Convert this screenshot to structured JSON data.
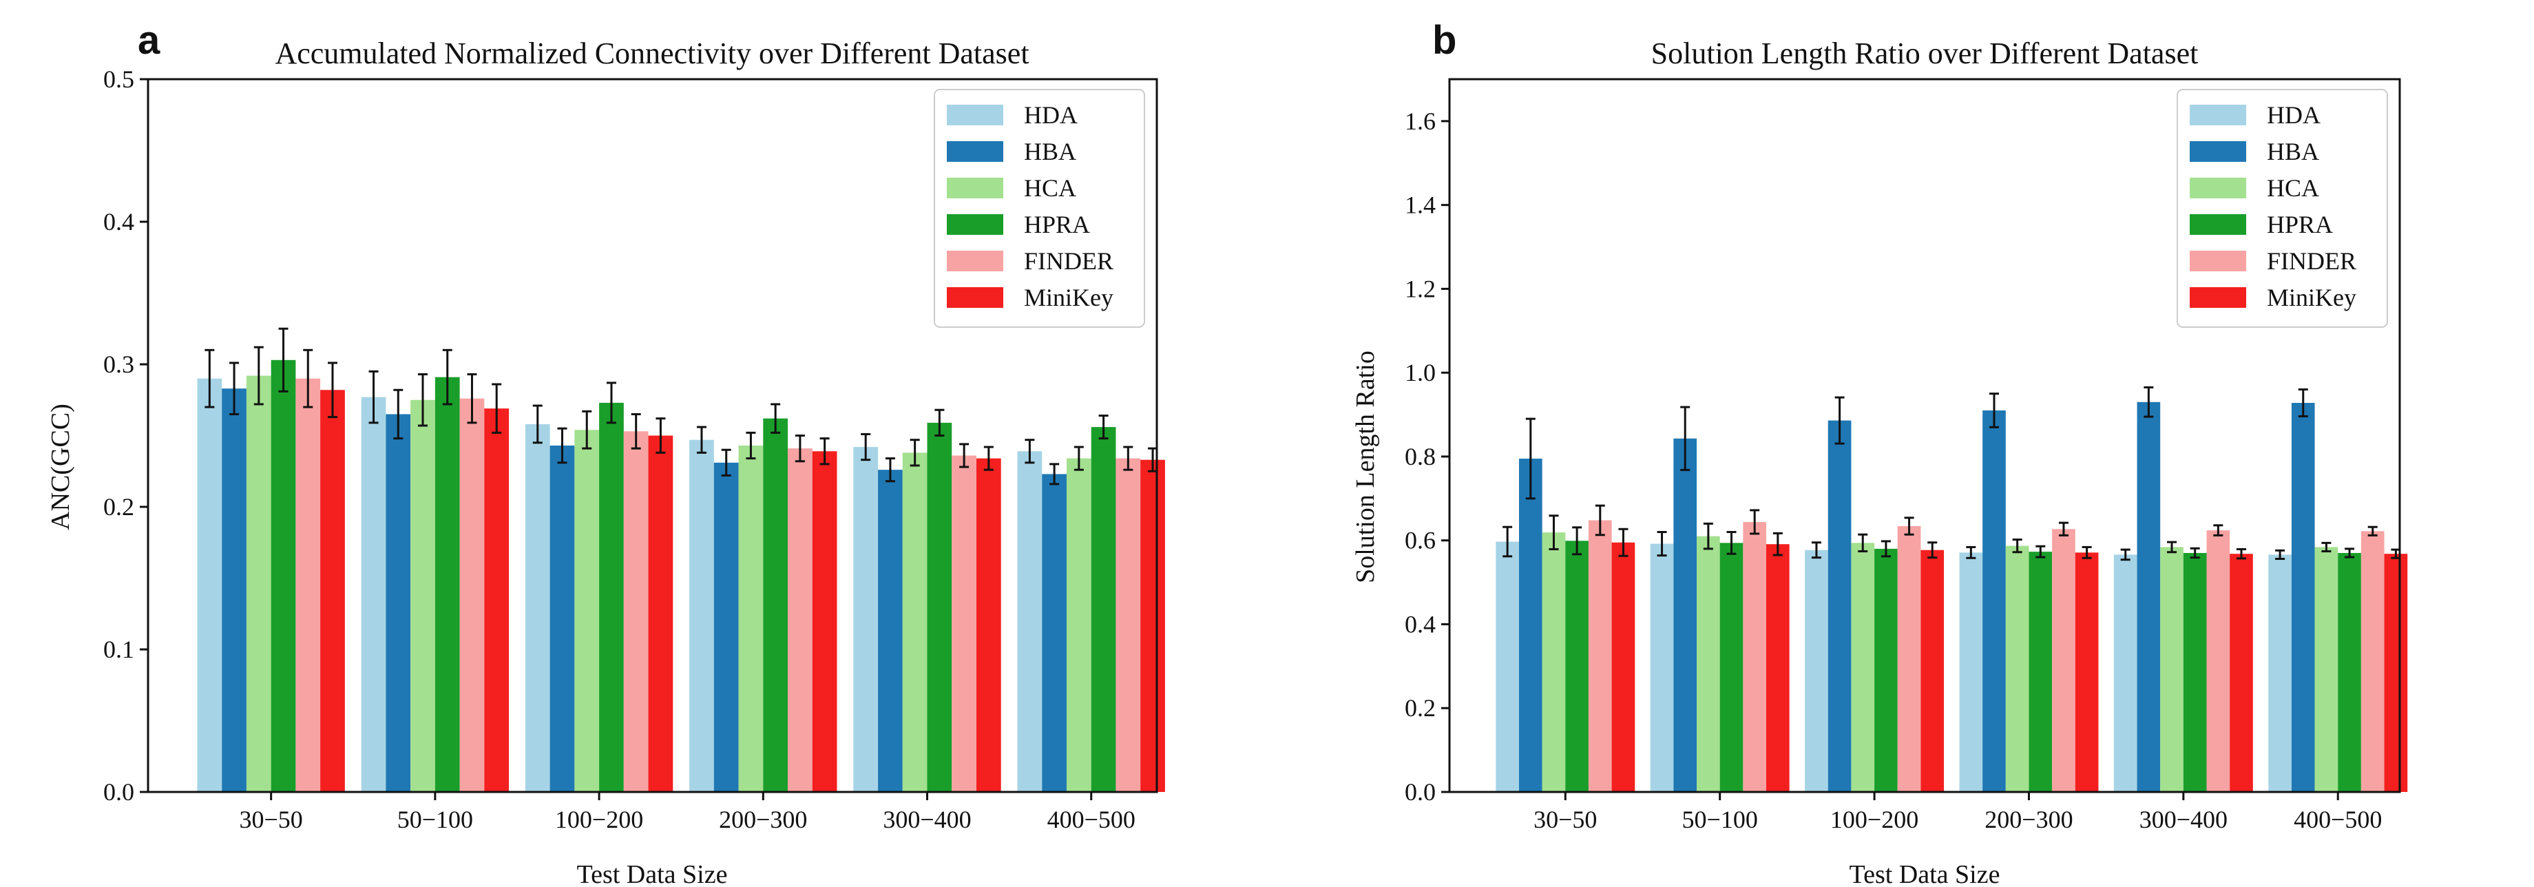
{
  "colors": {
    "HDA": "#a6d4e6",
    "HBA": "#1f78b4",
    "HCA": "#a3e08f",
    "HPRA": "#1a9e2a",
    "FINDER": "#f8a3a3",
    "MiniKey": "#f41f1f"
  },
  "chart_data": [
    {
      "panel": "a",
      "type": "bar",
      "title": "Accumulated Normalized Connectivity over Different Dataset",
      "xlabel": "Test Data Size",
      "ylabel": "ANC(GCC)",
      "ylim": [
        0,
        0.5
      ],
      "yticks": [
        "0.0",
        "0.1",
        "0.2",
        "0.3",
        "0.4",
        "0.5"
      ],
      "legend_position": "top-right",
      "categories": [
        "30−50",
        "50−100",
        "100−200",
        "200−300",
        "300−400",
        "400−500"
      ],
      "series": [
        {
          "name": "HDA",
          "values": [
            0.29,
            0.277,
            0.258,
            0.247,
            0.242,
            0.239
          ],
          "errors": [
            0.02,
            0.018,
            0.013,
            0.009,
            0.009,
            0.008
          ]
        },
        {
          "name": "HBA",
          "values": [
            0.283,
            0.265,
            0.243,
            0.231,
            0.226,
            0.223
          ],
          "errors": [
            0.018,
            0.017,
            0.012,
            0.009,
            0.008,
            0.007
          ]
        },
        {
          "name": "HCA",
          "values": [
            0.292,
            0.275,
            0.254,
            0.243,
            0.238,
            0.234
          ],
          "errors": [
            0.02,
            0.018,
            0.013,
            0.009,
            0.009,
            0.008
          ]
        },
        {
          "name": "HPRA",
          "values": [
            0.303,
            0.291,
            0.273,
            0.262,
            0.259,
            0.256
          ],
          "errors": [
            0.022,
            0.019,
            0.014,
            0.01,
            0.009,
            0.008
          ]
        },
        {
          "name": "FINDER",
          "values": [
            0.29,
            0.276,
            0.253,
            0.241,
            0.236,
            0.234
          ],
          "errors": [
            0.02,
            0.017,
            0.012,
            0.009,
            0.008,
            0.008
          ]
        },
        {
          "name": "MiniKey",
          "values": [
            0.282,
            0.269,
            0.25,
            0.239,
            0.234,
            0.233
          ],
          "errors": [
            0.019,
            0.017,
            0.012,
            0.009,
            0.008,
            0.008
          ]
        }
      ]
    },
    {
      "panel": "b",
      "type": "bar",
      "title": "Solution Length Ratio over Different Dataset",
      "xlabel": "Test Data Size",
      "ylabel": "Solution Length Ratio",
      "ylim": [
        0,
        1.7
      ],
      "yticks": [
        "0.0",
        "0.2",
        "0.4",
        "0.6",
        "0.8",
        "1.0",
        "1.2",
        "1.4",
        "1.6"
      ],
      "legend_position": "top-right",
      "categories": [
        "30−50",
        "50−100",
        "100−200",
        "200−300",
        "300−400",
        "400−500"
      ],
      "series": [
        {
          "name": "HDA",
          "values": [
            0.597,
            0.592,
            0.577,
            0.571,
            0.566,
            0.566
          ],
          "errors": [
            0.035,
            0.028,
            0.018,
            0.013,
            0.012,
            0.01
          ]
        },
        {
          "name": "HBA",
          "values": [
            0.795,
            0.843,
            0.886,
            0.91,
            0.93,
            0.928
          ],
          "errors": [
            0.095,
            0.075,
            0.055,
            0.04,
            0.035,
            0.032
          ]
        },
        {
          "name": "HCA",
          "values": [
            0.619,
            0.61,
            0.594,
            0.587,
            0.584,
            0.584
          ],
          "errors": [
            0.04,
            0.03,
            0.02,
            0.015,
            0.012,
            0.01
          ]
        },
        {
          "name": "HPRA",
          "values": [
            0.599,
            0.594,
            0.58,
            0.573,
            0.57,
            0.57
          ],
          "errors": [
            0.032,
            0.026,
            0.018,
            0.013,
            0.011,
            0.01
          ]
        },
        {
          "name": "FINDER",
          "values": [
            0.648,
            0.644,
            0.634,
            0.627,
            0.624,
            0.622
          ],
          "errors": [
            0.035,
            0.028,
            0.02,
            0.015,
            0.012,
            0.01
          ]
        },
        {
          "name": "MiniKey",
          "values": [
            0.595,
            0.591,
            0.577,
            0.571,
            0.568,
            0.568
          ],
          "errors": [
            0.032,
            0.026,
            0.018,
            0.013,
            0.011,
            0.01
          ]
        }
      ]
    }
  ]
}
